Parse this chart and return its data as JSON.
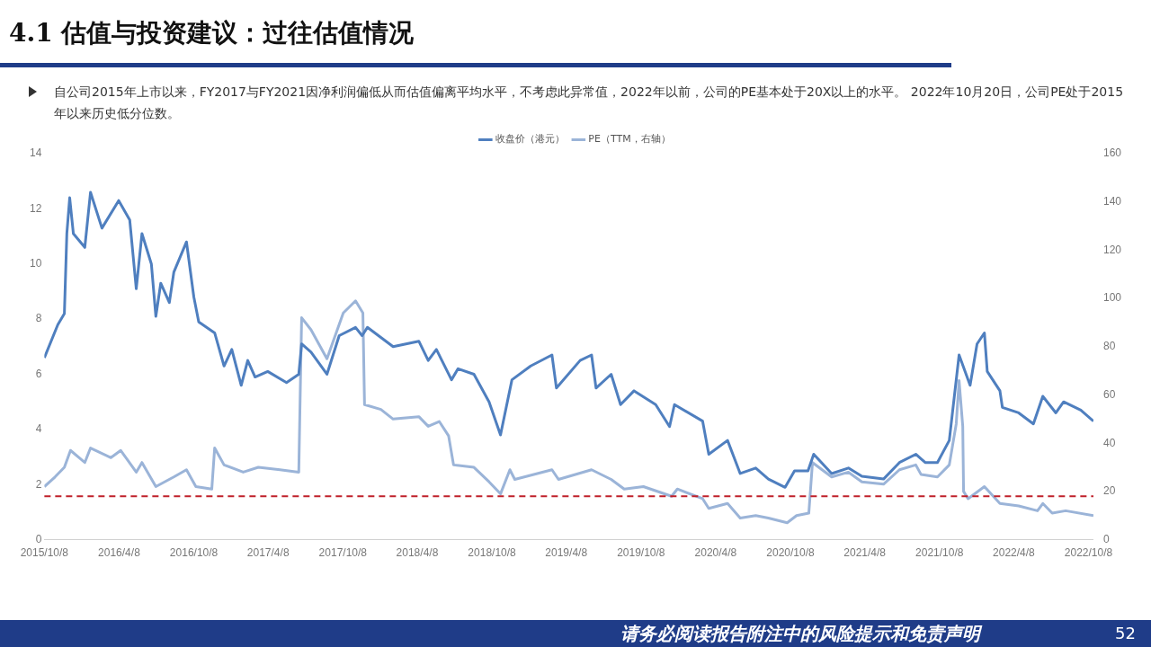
{
  "chart_data": {
    "type": "line",
    "title": "4.1 估值与投资建议：过往估值情况",
    "subtitle": "自公司2015年上市以来，FY2017与FY2021因净利润偏低从而估值偏离平均水平，不考虑此异常值，2022年以前，公司的PE基本处于20X以上的水平。 2022年10月20日，公司PE处于2015年以来历史低分位数。",
    "annotations": [
      "请务必阅读报告附注中的风险提示和免责声明",
      "52"
    ],
    "legend": "top",
    "grid": false,
    "marker": "none",
    "line_style": "solid",
    "xlim": [
      "2015-10-08",
      "2022-10-20"
    ],
    "xticks": [
      {
        "value": "2015-10-08",
        "label": "2015/10/8"
      },
      {
        "value": "2016-04-08",
        "label": "2016/4/8"
      },
      {
        "value": "2016-10-08",
        "label": "2016/10/8"
      },
      {
        "value": "2017-04-08",
        "label": "2017/4/8"
      },
      {
        "value": "2017-10-08",
        "label": "2017/10/8"
      },
      {
        "value": "2018-04-08",
        "label": "2018/4/8"
      },
      {
        "value": "2018-10-08",
        "label": "2018/10/8"
      },
      {
        "value": "2019-04-08",
        "label": "2019/4/8"
      },
      {
        "value": "2019-10-08",
        "label": "2019/10/8"
      },
      {
        "value": "2020-04-08",
        "label": "2020/4/8"
      },
      {
        "value": "2020-10-08",
        "label": "2020/10/8"
      },
      {
        "value": "2021-04-08",
        "label": "2021/4/8"
      },
      {
        "value": "2021-10-08",
        "label": "2021/10/8"
      },
      {
        "value": "2022-04-08",
        "label": "2022/4/8"
      },
      {
        "value": "2022-10-08",
        "label": "2022/10/8"
      }
    ],
    "ylim": [
      0,
      14
    ],
    "yticks": [
      0,
      2,
      4,
      6,
      8,
      10,
      12,
      14
    ],
    "y2lim": [
      0,
      160
    ],
    "y2ticks": [
      0,
      20,
      40,
      60,
      80,
      100,
      120,
      140,
      160
    ],
    "ref_lines": [
      {
        "axis": "y2",
        "value": 18,
        "color": "#c0202a",
        "line_style": "dashed"
      }
    ],
    "series": [
      {
        "name": "收盘价（港元）",
        "color": "#4f7fbf",
        "x": [
          "2015-10-08",
          "2015-11-10",
          "2015-11-26",
          "2015-12-02",
          "2015-12-09",
          "2015-12-18",
          "2016-01-15",
          "2016-01-29",
          "2016-02-26",
          "2016-04-07",
          "2016-05-04",
          "2016-05-20",
          "2016-06-03",
          "2016-06-26",
          "2016-07-07",
          "2016-07-19",
          "2016-08-09",
          "2016-08-20",
          "2016-09-20",
          "2016-10-08",
          "2016-10-20",
          "2016-11-28",
          "2016-12-21",
          "2017-01-09",
          "2017-02-01",
          "2017-02-17",
          "2017-03-07",
          "2017-04-07",
          "2017-05-23",
          "2017-06-22",
          "2017-06-29",
          "2017-07-22",
          "2017-08-30",
          "2017-09-29",
          "2017-11-08",
          "2017-11-24",
          "2017-12-07",
          "2018-02-08",
          "2018-04-12",
          "2018-05-05",
          "2018-05-25",
          "2018-07-01",
          "2018-07-17",
          "2018-08-25",
          "2018-10-01",
          "2018-10-29",
          "2018-11-26",
          "2019-01-11",
          "2019-03-04",
          "2019-03-15",
          "2019-05-12",
          "2019-06-09",
          "2019-06-20",
          "2019-07-27",
          "2019-08-19",
          "2019-09-21",
          "2019-11-13",
          "2019-12-17",
          "2019-12-29",
          "2020-03-07",
          "2020-03-22",
          "2020-05-07",
          "2020-06-07",
          "2020-07-15",
          "2020-08-15",
          "2020-09-25",
          "2020-10-18",
          "2020-11-20",
          "2020-12-04",
          "2021-01-17",
          "2021-02-27",
          "2021-04-01",
          "2021-05-24",
          "2021-07-02",
          "2021-08-11",
          "2021-09-03",
          "2021-10-03",
          "2021-11-01",
          "2021-11-25",
          "2021-12-22",
          "2022-01-08",
          "2022-01-26",
          "2022-02-02",
          "2022-03-05",
          "2022-03-11",
          "2022-04-20",
          "2022-05-26",
          "2022-06-18",
          "2022-07-20",
          "2022-08-08",
          "2022-09-19",
          "2022-10-20"
        ],
        "values": [
          6.6,
          7.8,
          8.2,
          11.1,
          12.4,
          11.1,
          10.6,
          12.6,
          11.3,
          12.3,
          11.6,
          9.1,
          11.1,
          10.0,
          8.1,
          9.3,
          8.6,
          9.7,
          10.8,
          8.8,
          7.9,
          7.5,
          6.3,
          6.9,
          5.6,
          6.5,
          5.9,
          6.1,
          5.7,
          6.0,
          7.1,
          6.8,
          6.0,
          7.4,
          7.7,
          7.4,
          7.7,
          7.0,
          7.2,
          6.5,
          6.9,
          5.8,
          6.2,
          6.0,
          5.0,
          3.8,
          5.8,
          6.3,
          6.7,
          5.5,
          6.5,
          6.7,
          5.5,
          6.0,
          4.9,
          5.4,
          4.9,
          4.1,
          4.9,
          4.3,
          3.1,
          3.6,
          2.4,
          2.6,
          2.2,
          1.9,
          2.5,
          2.5,
          3.1,
          2.4,
          2.6,
          2.3,
          2.2,
          2.8,
          3.1,
          2.8,
          2.8,
          3.6,
          6.7,
          5.6,
          7.1,
          7.5,
          6.1,
          5.4,
          4.8,
          4.6,
          4.2,
          5.2,
          4.6,
          5.0,
          4.7,
          4.3
        ]
      },
      {
        "name": "PE（TTM，右轴）",
        "color": "#9bb4d8",
        "axis": "y2",
        "x": [
          "2015-10-08",
          "2015-11-03",
          "2015-11-26",
          "2015-12-11",
          "2016-01-15",
          "2016-01-29",
          "2016-03-19",
          "2016-04-12",
          "2016-05-20",
          "2016-06-03",
          "2016-07-07",
          "2016-08-20",
          "2016-09-20",
          "2016-10-13",
          "2016-11-21",
          "2016-11-28",
          "2016-12-21",
          "2017-02-06",
          "2017-03-15",
          "2017-05-07",
          "2017-06-22",
          "2017-06-29",
          "2017-07-22",
          "2017-08-30",
          "2017-10-09",
          "2017-11-08",
          "2017-11-26",
          "2017-11-30",
          "2018-01-09",
          "2018-02-08",
          "2018-04-12",
          "2018-05-05",
          "2018-06-01",
          "2018-06-24",
          "2018-07-06",
          "2018-08-25",
          "2018-10-01",
          "2018-10-29",
          "2018-11-21",
          "2018-12-03",
          "2019-03-04",
          "2019-03-20",
          "2019-06-09",
          "2019-07-27",
          "2019-08-28",
          "2019-10-14",
          "2019-12-22",
          "2020-01-05",
          "2020-03-07",
          "2020-03-22",
          "2020-05-07",
          "2020-06-07",
          "2020-07-15",
          "2020-08-15",
          "2020-09-30",
          "2020-10-23",
          "2020-11-22",
          "2020-12-01",
          "2021-01-17",
          "2021-02-27",
          "2021-04-01",
          "2021-05-24",
          "2021-07-02",
          "2021-08-11",
          "2021-08-24",
          "2021-10-03",
          "2021-11-01",
          "2021-11-18",
          "2021-11-25",
          "2021-12-04",
          "2021-12-06",
          "2021-12-17",
          "2022-01-26",
          "2022-03-05",
          "2022-04-20",
          "2022-06-05",
          "2022-06-18",
          "2022-07-11",
          "2022-08-13",
          "2022-10-20"
        ],
        "values": [
          22,
          26,
          30,
          37,
          32,
          38,
          34,
          37,
          28,
          32,
          22,
          26,
          29,
          22,
          21,
          38,
          31,
          28,
          30,
          29,
          28,
          92,
          87,
          75,
          94,
          99,
          94,
          56,
          54,
          50,
          51,
          47,
          49,
          43,
          31,
          30,
          24,
          19,
          29,
          25,
          29,
          25,
          29,
          25,
          21,
          22,
          18,
          21,
          17,
          13,
          15,
          9,
          10,
          9,
          7,
          10,
          11,
          32,
          26,
          28,
          24,
          23,
          29,
          31,
          27,
          26,
          31,
          48,
          66,
          47,
          20,
          17,
          22,
          15,
          14,
          12,
          15,
          11,
          12,
          10
        ]
      }
    ]
  }
}
